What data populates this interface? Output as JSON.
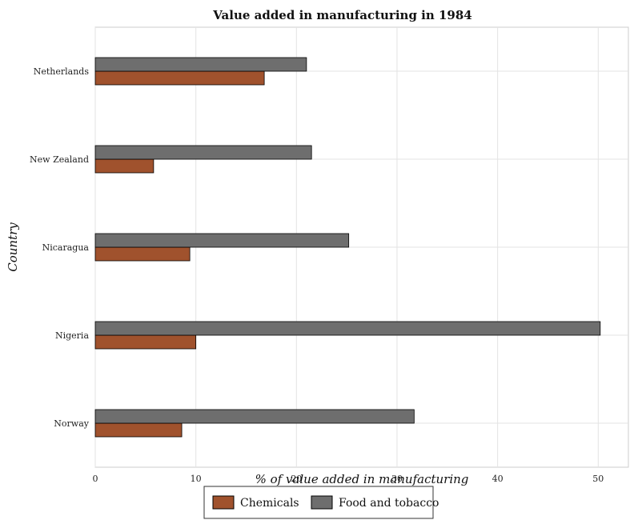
{
  "chart_data": {
    "type": "bar",
    "orientation": "horizontal",
    "title": "Value added in manufacturing in 1984",
    "xlabel": "% of value added in manufacturing",
    "ylabel": "Country",
    "categories": [
      "Netherlands",
      "New Zealand",
      "Nicaragua",
      "Nigeria",
      "Norway"
    ],
    "series": [
      {
        "name": "Chemicals",
        "color": "#a0522d",
        "values": [
          16.8,
          5.8,
          9.4,
          10.0,
          8.6
        ]
      },
      {
        "name": "Food and tobacco",
        "color": "#6e6e6e",
        "values": [
          21.0,
          21.5,
          25.2,
          50.2,
          31.7
        ]
      }
    ],
    "xlim": [
      0,
      53
    ],
    "xticks": [
      0,
      10,
      20,
      30,
      40,
      50
    ],
    "grid": true,
    "legend_position": "bottom-center"
  }
}
